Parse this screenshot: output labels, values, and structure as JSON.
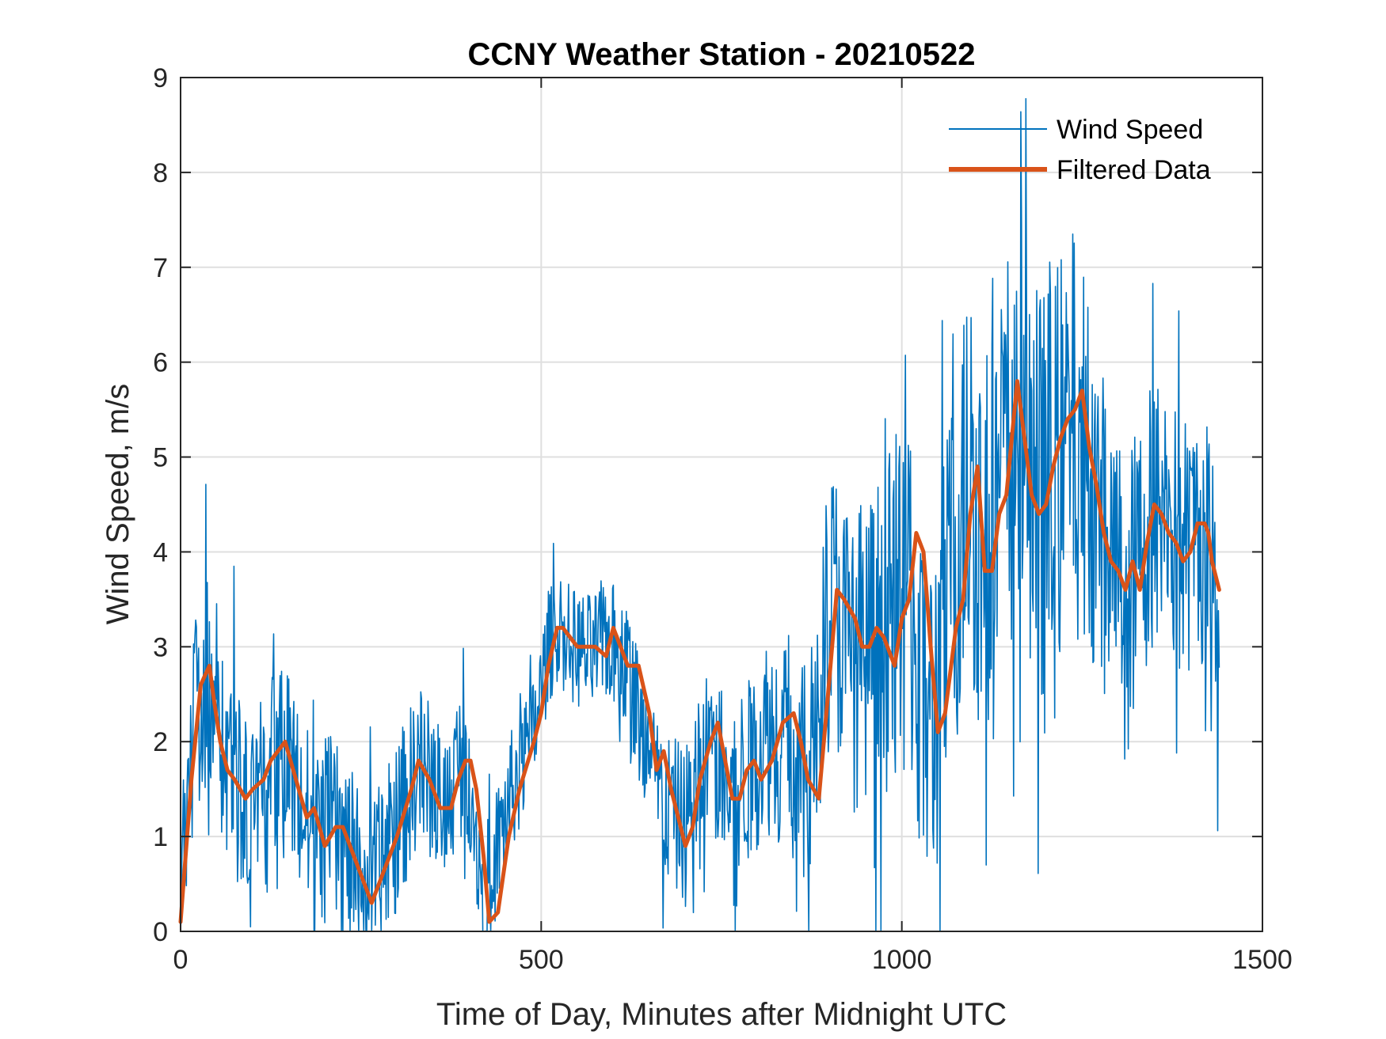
{
  "colors": {
    "wind_speed": "#0072BD",
    "filtered": "#D95319",
    "grid": "#DFDFDF",
    "axis": "#262626"
  },
  "chart_data": {
    "type": "line",
    "title": "CCNY Weather Station - 20210522",
    "xlabel": "Time of Day, Minutes after Midnight UTC",
    "ylabel": "Wind Speed, m/s",
    "xlim": [
      0,
      1500
    ],
    "ylim": [
      0,
      9
    ],
    "xticks": [
      0,
      500,
      1000,
      1500
    ],
    "yticks": [
      0,
      1,
      2,
      3,
      4,
      5,
      6,
      7,
      8,
      9
    ],
    "xtick_labels": [
      "0",
      "500",
      "1000",
      "1500"
    ],
    "ytick_labels": [
      "0",
      "1",
      "2",
      "3",
      "4",
      "5",
      "6",
      "7",
      "8",
      "9"
    ],
    "grid": true,
    "legend_position": "top-right",
    "series": [
      {
        "name": "Wind Speed",
        "style": "thin",
        "x_range": [
          0,
          1440
        ],
        "n_points": 1441,
        "trend_x": [
          0,
          15,
          40,
          60,
          80,
          100,
          120,
          145,
          170,
          190,
          205,
          225,
          245,
          265,
          290,
          310,
          330,
          345,
          370,
          385,
          400,
          420,
          440,
          460,
          490,
          510,
          525,
          545,
          570,
          590,
          620,
          650,
          675,
          700,
          715,
          735,
          760,
          775,
          790,
          810,
          845,
          870,
          885,
          905,
          925,
          950,
          975,
          990,
          1005,
          1020,
          1040,
          1055,
          1075,
          1095,
          1115,
          1135,
          1160,
          1180,
          1200,
          1220,
          1240,
          1255,
          1275,
          1300,
          1320,
          1345,
          1365,
          1385,
          1400,
          1420,
          1440
        ],
        "trend_y": [
          0.2,
          2.0,
          2.8,
          2.0,
          1.6,
          1.4,
          1.5,
          2.0,
          1.2,
          1.0,
          1.1,
          0.9,
          0.6,
          0.4,
          0.9,
          1.3,
          1.8,
          1.6,
          1.3,
          1.8,
          1.7,
          0.3,
          0.9,
          1.5,
          2.1,
          3.0,
          3.2,
          3.0,
          2.9,
          3.1,
          2.8,
          1.7,
          1.3,
          1.1,
          1.6,
          2.0,
          1.4,
          1.6,
          1.7,
          2.1,
          2.0,
          1.4,
          3.0,
          3.5,
          3.0,
          2.9,
          3.2,
          3.3,
          4.2,
          3.0,
          2.1,
          2.8,
          4.0,
          4.9,
          3.9,
          4.5,
          5.7,
          4.6,
          4.4,
          5.0,
          5.4,
          5.0,
          4.3,
          3.8,
          3.7,
          4.4,
          4.5,
          4.0,
          4.1,
          4.2,
          3.6
        ],
        "noise_x": [
          0,
          200,
          400,
          500,
          600,
          700,
          800,
          880,
          950,
          1050,
          1100,
          1200,
          1300,
          1440
        ],
        "noise_amplitude": [
          0.7,
          0.6,
          0.45,
          0.35,
          0.4,
          0.5,
          0.6,
          0.8,
          1.0,
          1.2,
          1.3,
          1.4,
          0.9,
          0.8
        ]
      },
      {
        "name": "Filtered Data",
        "style": "thick",
        "x": [
          0,
          15,
          28,
          40,
          47,
          55,
          65,
          75,
          90,
          100,
          115,
          125,
          135,
          145,
          160,
          175,
          185,
          200,
          215,
          225,
          235,
          245,
          255,
          265,
          280,
          300,
          320,
          330,
          345,
          360,
          375,
          385,
          395,
          402,
          410,
          420,
          428,
          440,
          455,
          470,
          490,
          500,
          510,
          522,
          530,
          540,
          550,
          565,
          575,
          590,
          600,
          610,
          620,
          635,
          650,
          660,
          670,
          680,
          690,
          700,
          710,
          720,
          735,
          745,
          755,
          765,
          775,
          785,
          795,
          805,
          820,
          835,
          850,
          860,
          870,
          885,
          900,
          910,
          920,
          935,
          945,
          955,
          965,
          975,
          985,
          990,
          1000,
          1010,
          1020,
          1030,
          1040,
          1050,
          1060,
          1075,
          1085,
          1095,
          1105,
          1115,
          1125,
          1135,
          1145,
          1160,
          1170,
          1180,
          1190,
          1200,
          1210,
          1220,
          1230,
          1240,
          1250,
          1260,
          1270,
          1280,
          1290,
          1300,
          1310,
          1320,
          1330,
          1340,
          1350,
          1360,
          1370,
          1380,
          1390,
          1400,
          1410,
          1420,
          1425,
          1430,
          1440
        ],
        "y": [
          0.1,
          1.6,
          2.6,
          2.8,
          2.4,
          2.0,
          1.7,
          1.6,
          1.4,
          1.5,
          1.6,
          1.8,
          1.9,
          2.0,
          1.6,
          1.2,
          1.3,
          0.9,
          1.1,
          1.1,
          0.9,
          0.7,
          0.5,
          0.3,
          0.6,
          1.0,
          1.5,
          1.8,
          1.6,
          1.3,
          1.3,
          1.6,
          1.8,
          1.8,
          1.5,
          0.8,
          0.1,
          0.2,
          1.0,
          1.5,
          2.0,
          2.3,
          2.8,
          3.2,
          3.2,
          3.1,
          3.0,
          3.0,
          3.0,
          2.9,
          3.2,
          3.0,
          2.8,
          2.8,
          2.3,
          1.7,
          1.9,
          1.5,
          1.2,
          0.9,
          1.1,
          1.6,
          2.0,
          2.2,
          1.8,
          1.4,
          1.4,
          1.7,
          1.8,
          1.6,
          1.8,
          2.2,
          2.3,
          2.0,
          1.6,
          1.4,
          2.7,
          3.6,
          3.5,
          3.3,
          3.0,
          3.0,
          3.2,
          3.1,
          2.9,
          2.8,
          3.3,
          3.5,
          4.2,
          4.0,
          3.0,
          2.1,
          2.3,
          3.2,
          3.5,
          4.4,
          4.9,
          3.8,
          3.8,
          4.4,
          4.6,
          5.8,
          5.2,
          4.6,
          4.4,
          4.5,
          4.9,
          5.2,
          5.4,
          5.5,
          5.7,
          5.1,
          4.7,
          4.2,
          3.9,
          3.8,
          3.6,
          3.9,
          3.6,
          4.1,
          4.5,
          4.4,
          4.2,
          4.1,
          3.9,
          4.0,
          4.3,
          4.3,
          4.2,
          3.9,
          3.6
        ]
      }
    ]
  }
}
